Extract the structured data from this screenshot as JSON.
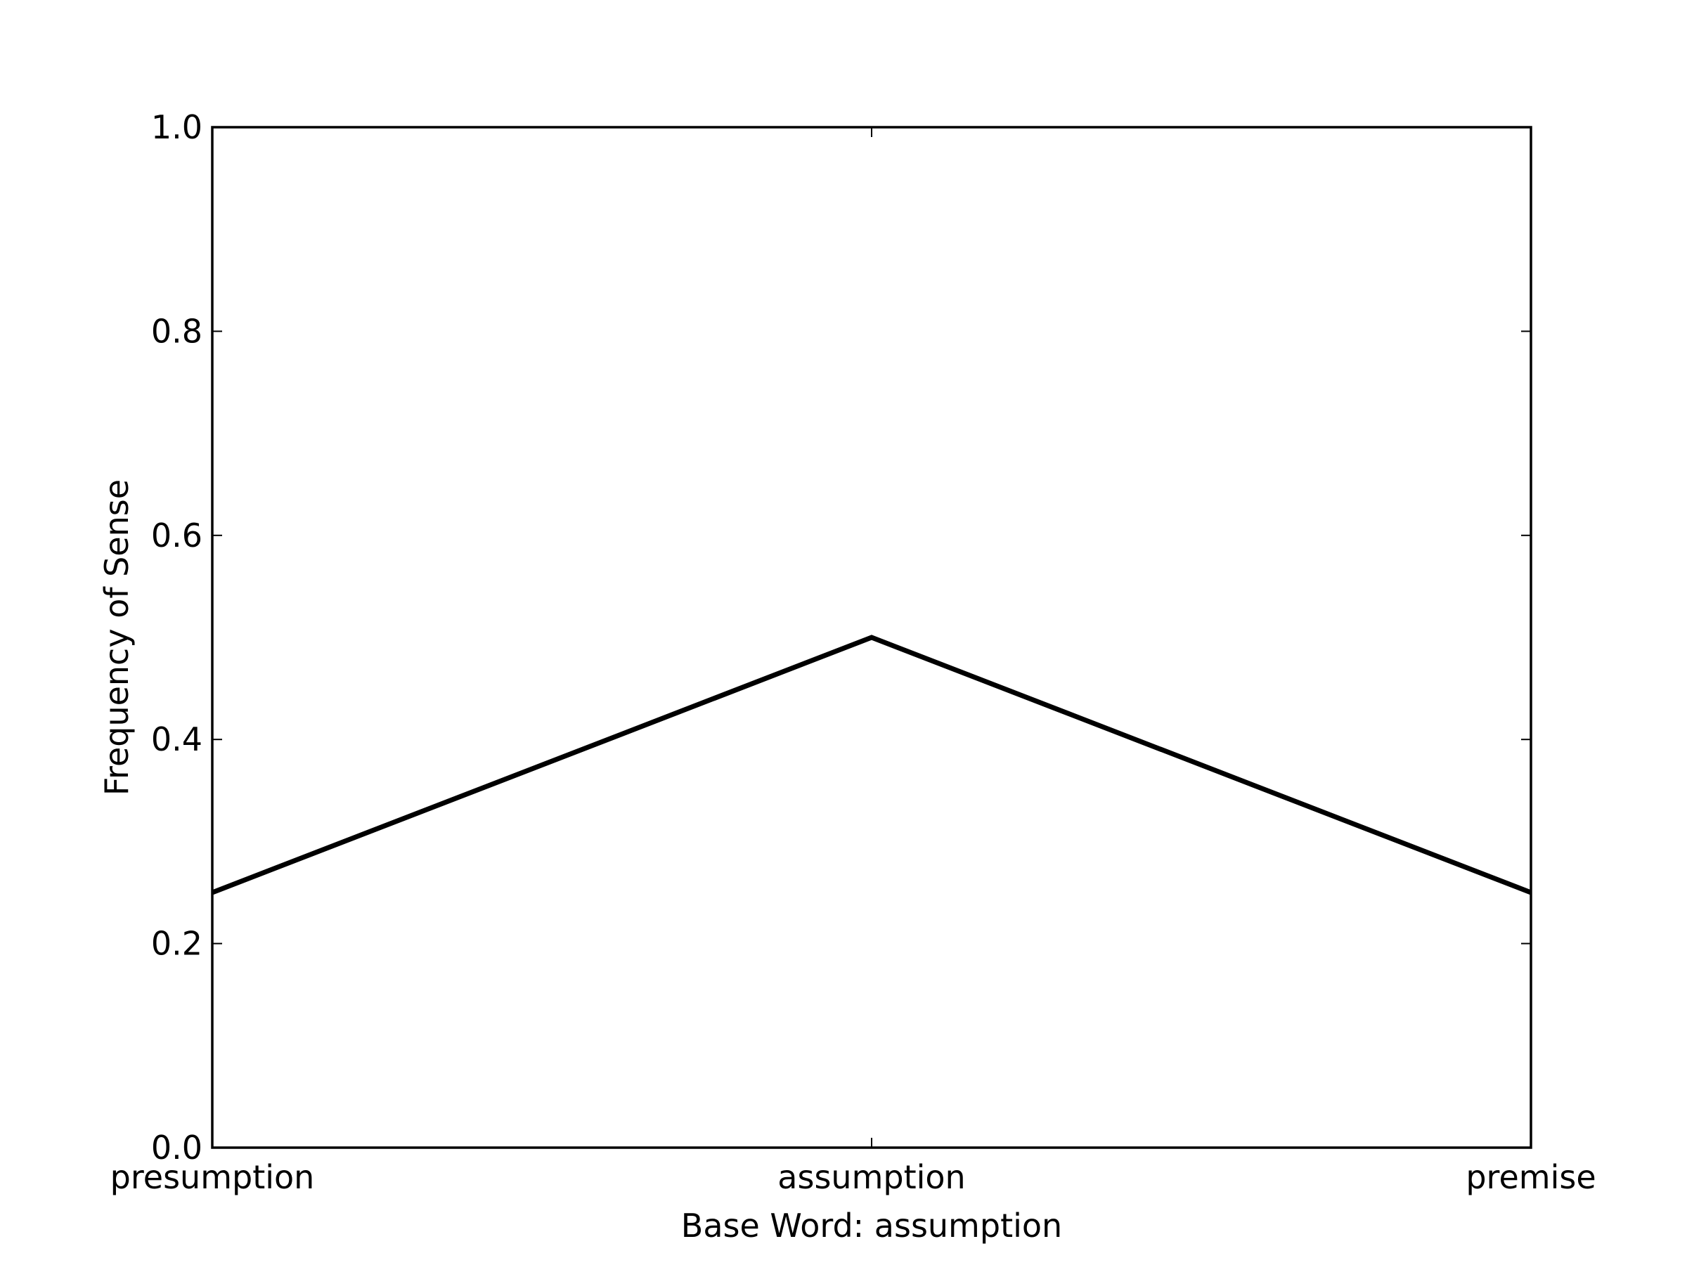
{
  "chart_data": {
    "type": "line",
    "categories": [
      "presumption",
      "assumption",
      "premise"
    ],
    "series": [
      {
        "values": [
          0.25,
          0.5,
          0.25
        ]
      }
    ],
    "xlabel": "Base Word: assumption",
    "ylabel": "Frequency of Sense",
    "ylim": [
      0.0,
      1.0
    ],
    "yticks": [
      "0.0",
      "0.2",
      "0.4",
      "0.6",
      "0.8",
      "1.0"
    ],
    "grid": false,
    "line_color": "#000000"
  }
}
